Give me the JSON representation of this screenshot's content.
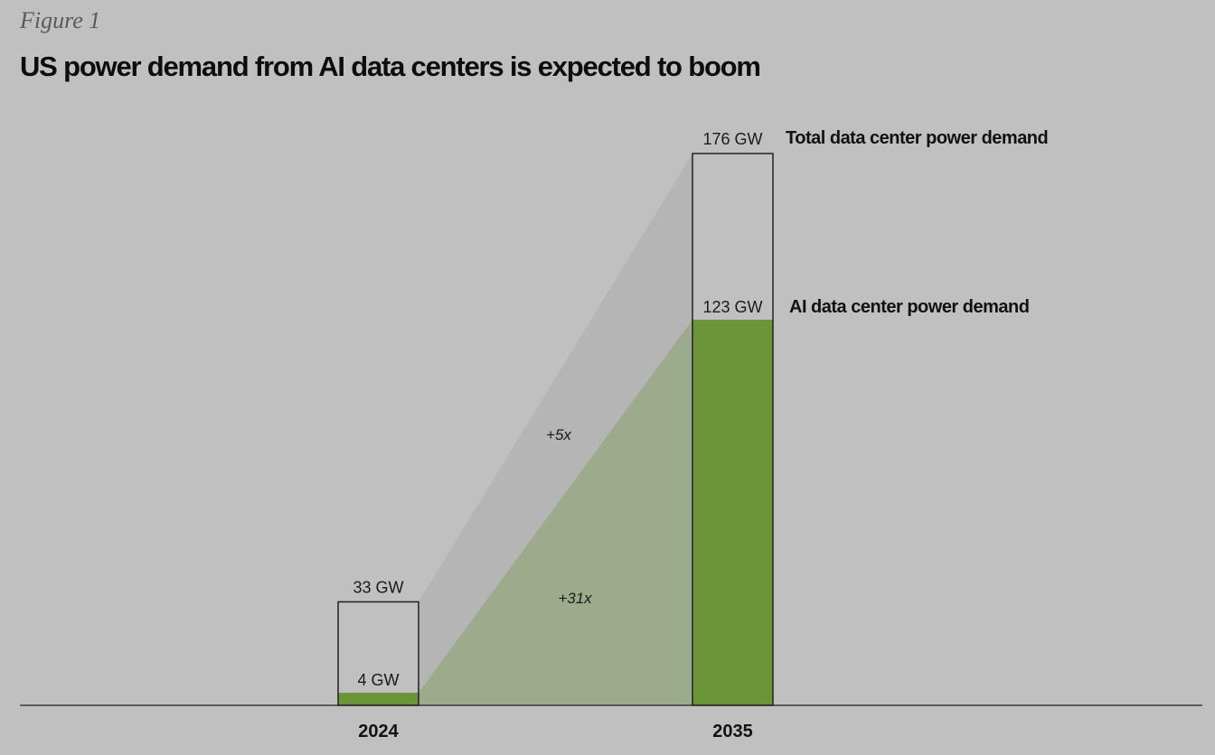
{
  "figure_label": "Figure 1",
  "chart_data": {
    "type": "bar",
    "title": "US power demand from AI data centers is expected to boom",
    "categories": [
      "2024",
      "2035"
    ],
    "unit": "GW",
    "series": [
      {
        "name": "Total data center power demand",
        "values": [
          33,
          176
        ],
        "labels": [
          "33 GW",
          "176 GW"
        ]
      },
      {
        "name": "AI data center power demand",
        "values": [
          4,
          123
        ],
        "labels": [
          "4 GW",
          "123 GW"
        ]
      }
    ],
    "growth": {
      "total": "+5x",
      "ai": "+31x"
    },
    "ylim": [
      0,
      176
    ],
    "colors": {
      "ai": "#6a9639",
      "ai_band": "#9cab8c",
      "total_band": "#b5b5b5",
      "outline": "#222222",
      "background": "#c0c0c0"
    }
  }
}
